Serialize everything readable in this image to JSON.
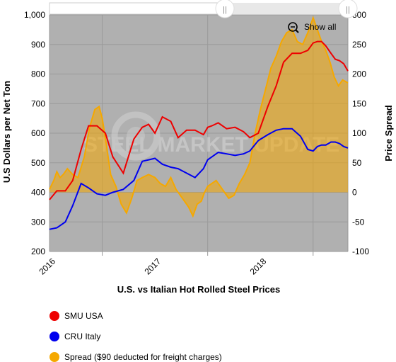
{
  "chart_data": {
    "type": "line",
    "title": "",
    "xlabel": "U.S. vs Italian Hot Rolled Steel Prices",
    "ylabel": "U.S Dollars per Net Ton",
    "y2label": "Price Spread",
    "ylim": [
      200,
      1000
    ],
    "y2lim": [
      -100,
      300
    ],
    "yticks": [
      "200",
      "300",
      "400",
      "500",
      "600",
      "700",
      "800",
      "900",
      "1,000"
    ],
    "y2ticks": [
      "-100",
      "-50",
      "0",
      "50",
      "100",
      "150",
      "200",
      "250",
      "300"
    ],
    "xlim": [
      2015.5,
      2018.33
    ],
    "xticks": [
      {
        "value": 2016,
        "label": "2016"
      },
      {
        "value": 2017,
        "label": "2017"
      },
      {
        "value": 2018,
        "label": "2018"
      }
    ],
    "grid": true,
    "legend_placement": "bottom-left",
    "zoom_button_label": "Show all",
    "watermark": "STEEL MARKET UPDATE",
    "series": [
      {
        "name": "SMU USA",
        "color": "#ee0000",
        "axis": "left",
        "x": [
          2015.5,
          2015.57,
          2015.65,
          2015.72,
          2015.8,
          2015.87,
          2015.95,
          2016.03,
          2016.1,
          2016.2,
          2016.3,
          2016.38,
          2016.44,
          2016.5,
          2016.57,
          2016.65,
          2016.72,
          2016.8,
          2016.88,
          2016.96,
          2017.0,
          2017.04,
          2017.1,
          2017.18,
          2017.26,
          2017.34,
          2017.4,
          2017.48,
          2017.57,
          2017.65,
          2017.72,
          2017.8,
          2017.88,
          2017.95,
          2018.0,
          2018.04,
          2018.08,
          2018.12,
          2018.17,
          2018.21,
          2018.25,
          2018.29,
          2018.33
        ],
        "values": [
          375,
          405,
          405,
          440,
          545,
          625,
          625,
          600,
          520,
          465,
          580,
          620,
          630,
          600,
          655,
          640,
          585,
          610,
          610,
          595,
          620,
          625,
          635,
          615,
          620,
          605,
          585,
          600,
          690,
          760,
          840,
          870,
          870,
          880,
          905,
          910,
          910,
          895,
          870,
          850,
          845,
          835,
          810
        ]
      },
      {
        "name": "CRU Italy",
        "color": "#0000ee",
        "axis": "left",
        "x": [
          2015.5,
          2015.57,
          2015.65,
          2015.72,
          2015.8,
          2015.87,
          2015.95,
          2016.03,
          2016.1,
          2016.2,
          2016.3,
          2016.38,
          2016.44,
          2016.5,
          2016.57,
          2016.65,
          2016.72,
          2016.8,
          2016.88,
          2016.96,
          2017.0,
          2017.04,
          2017.1,
          2017.18,
          2017.26,
          2017.34,
          2017.4,
          2017.48,
          2017.57,
          2017.65,
          2017.72,
          2017.8,
          2017.88,
          2017.95,
          2018.0,
          2018.04,
          2018.08,
          2018.12,
          2018.17,
          2018.21,
          2018.25,
          2018.29,
          2018.33
        ],
        "values": [
          275,
          280,
          300,
          355,
          430,
          415,
          395,
          390,
          400,
          410,
          440,
          505,
          510,
          515,
          495,
          485,
          480,
          465,
          450,
          480,
          510,
          520,
          535,
          530,
          525,
          530,
          540,
          575,
          595,
          610,
          615,
          615,
          590,
          545,
          540,
          555,
          560,
          560,
          570,
          570,
          565,
          555,
          550
        ]
      },
      {
        "name": "Spread ($90 deducted for freight charges)",
        "color": "#f5a800",
        "axis": "right",
        "x": [
          2015.5,
          2015.54,
          2015.57,
          2015.6,
          2015.63,
          2015.67,
          2015.72,
          2015.77,
          2015.83,
          2015.88,
          2015.93,
          2015.97,
          2016.0,
          2016.04,
          2016.08,
          2016.13,
          2016.18,
          2016.23,
          2016.28,
          2016.33,
          2016.38,
          2016.44,
          2016.5,
          2016.55,
          2016.6,
          2016.65,
          2016.7,
          2016.74,
          2016.78,
          2016.82,
          2016.86,
          2016.9,
          2016.94,
          2016.97,
          2017.0,
          2017.04,
          2017.08,
          2017.12,
          2017.16,
          2017.2,
          2017.25,
          2017.3,
          2017.35,
          2017.4,
          2017.45,
          2017.5,
          2017.55,
          2017.6,
          2017.65,
          2017.7,
          2017.75,
          2017.8,
          2017.85,
          2017.9,
          2017.95,
          2018.0,
          2018.04,
          2018.08,
          2018.12,
          2018.16,
          2018.2,
          2018.24,
          2018.28,
          2018.33
        ],
        "values": [
          5,
          20,
          35,
          25,
          30,
          40,
          30,
          25,
          60,
          110,
          140,
          145,
          125,
          80,
          30,
          10,
          -20,
          -35,
          -10,
          20,
          25,
          30,
          25,
          15,
          10,
          25,
          5,
          -5,
          -15,
          -25,
          -40,
          -20,
          -15,
          0,
          10,
          15,
          20,
          10,
          0,
          -10,
          -5,
          15,
          30,
          50,
          100,
          140,
          175,
          210,
          230,
          255,
          270,
          275,
          255,
          250,
          270,
          295,
          275,
          255,
          240,
          220,
          195,
          180,
          190,
          185
        ]
      }
    ]
  }
}
